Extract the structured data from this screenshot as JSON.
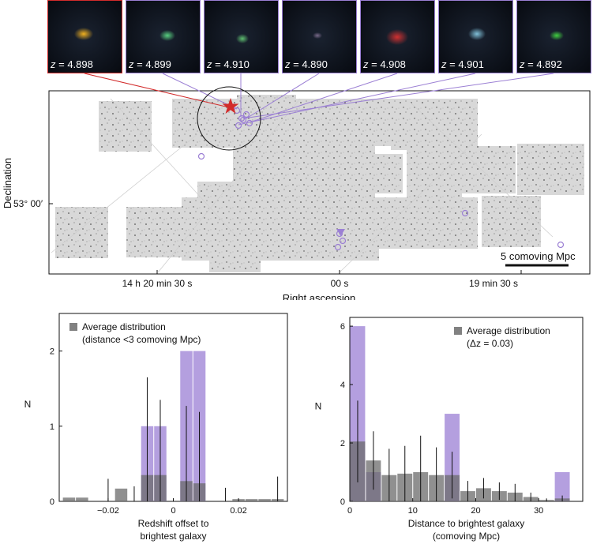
{
  "thumbnails": [
    {
      "z": "4.898",
      "source": "brightest"
    },
    {
      "z": "4.899"
    },
    {
      "z": "4.910"
    },
    {
      "z": "4.890"
    },
    {
      "z": "4.908"
    },
    {
      "z": "4.901"
    },
    {
      "z": "4.892"
    }
  ],
  "z_prefix": "z",
  "z_equals": " = ",
  "map": {
    "ylabel": "Declination",
    "dec_tick": "53° 00′",
    "xlabel": "Right ascension",
    "ra_ticks": [
      "14 h 20 min 30 s",
      "00 s",
      "19 min 30 s"
    ],
    "scalebar_label": "5 comoving Mpc"
  },
  "colors": {
    "brightest": "#d22b2b",
    "member": "#9b7fd4",
    "average": "#6b6b6b"
  },
  "chart_data": [
    {
      "type": "bar",
      "xlabel": "Redshift offset to brightest galaxy",
      "xlabel_lines": [
        "Redshift offset to",
        "brightest galaxy"
      ],
      "ylabel": "N",
      "legend": [
        "Average distribution",
        "(distance <3 comoving Mpc)"
      ],
      "legend_position": "top-left",
      "xlim": [
        -0.035,
        0.035
      ],
      "ylim": [
        0,
        2.5
      ],
      "xticks": [
        "−0.02",
        "0",
        "0.02"
      ],
      "xtick_values": [
        -0.02,
        0,
        0.02
      ],
      "yticks": [
        "0",
        "1",
        "2"
      ],
      "bin_width": 0.004,
      "series": [
        {
          "kind": "observed",
          "centers": [
            -0.008,
            -0.004,
            0.004,
            0.008
          ],
          "values": [
            1,
            1,
            2,
            2
          ]
        },
        {
          "kind": "average",
          "centers": [
            -0.032,
            -0.028,
            -0.024,
            -0.02,
            -0.016,
            -0.012,
            -0.008,
            -0.004,
            0.0,
            0.004,
            0.008,
            0.012,
            0.016,
            0.02,
            0.024,
            0.028,
            0.032
          ],
          "values": [
            0.05,
            0.05,
            0.0,
            0.0,
            0.17,
            0.0,
            0.35,
            0.35,
            0.0,
            0.27,
            0.24,
            0.0,
            0.0,
            0.03,
            0.03,
            0.03,
            0.03
          ],
          "errors": [
            0,
            0,
            0,
            0.3,
            0,
            0.2,
            1.3,
            1.0,
            0,
            1.0,
            0.95,
            0,
            0.18,
            0,
            0,
            0,
            0.3
          ]
        }
      ]
    },
    {
      "type": "bar",
      "xlabel": "Distance to brightest galaxy (comoving Mpc)",
      "xlabel_lines": [
        "Distance to brightest galaxy",
        "(comoving Mpc)"
      ],
      "ylabel": "N",
      "legend": [
        "Average distribution",
        "(Δz = 0.03)"
      ],
      "legend_position": "top-right",
      "xlim": [
        0,
        37
      ],
      "ylim": [
        0,
        6.3
      ],
      "xticks": [
        "0",
        "10",
        "20",
        "30"
      ],
      "xtick_values": [
        0,
        10,
        20,
        30
      ],
      "yticks": [
        "0",
        "2",
        "4",
        "6"
      ],
      "bin_width": 2.5,
      "series": [
        {
          "kind": "observed",
          "centers": [
            1.25,
            3.75,
            16.25,
            33.75
          ],
          "values": [
            6,
            1,
            3,
            1
          ]
        },
        {
          "kind": "average",
          "centers": [
            1.25,
            3.75,
            6.25,
            8.75,
            11.25,
            13.75,
            16.25,
            18.75,
            21.25,
            23.75,
            26.25,
            28.75,
            31.25,
            33.75
          ],
          "values": [
            2.05,
            1.4,
            0.9,
            0.95,
            1.0,
            0.9,
            0.9,
            0.35,
            0.45,
            0.35,
            0.3,
            0.15,
            0.05,
            0.1
          ],
          "errors": [
            1.4,
            1.0,
            0.9,
            0.95,
            1.25,
            0.95,
            0.8,
            0.35,
            0.35,
            0.3,
            0.3,
            0.15,
            0.05,
            0.1
          ]
        }
      ]
    }
  ]
}
